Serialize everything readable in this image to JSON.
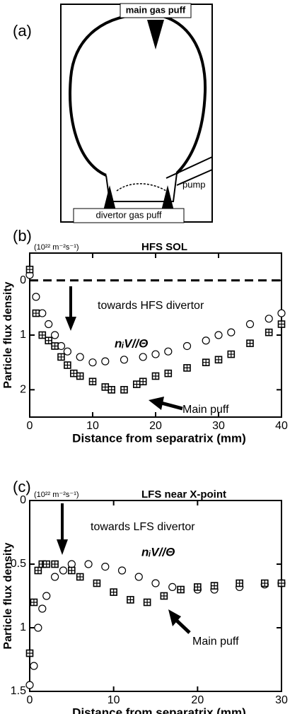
{
  "diagram": {
    "panel_label": "(a)",
    "labels": [
      "main gas puff",
      "pump",
      "divertor gas puff"
    ]
  },
  "chart_data": [
    {
      "type": "scatter",
      "panel_label": "(b)",
      "ylabel": "Particle flux density",
      "xlabel": "Distance from separatrix (mm)",
      "annotations": [
        "(10²² m⁻²s⁻¹)",
        "HFS SOL",
        "towards HFS divertor",
        "nᵢV//Θ",
        "Main puff"
      ],
      "xlim": [
        0,
        40
      ],
      "xticks": [
        0,
        10,
        20,
        30,
        40
      ],
      "ylim": [
        -0.5,
        2.5
      ],
      "yticks": [
        0,
        1,
        2
      ],
      "y_inverted": true,
      "hline": 0,
      "series": [
        {
          "marker": "circle",
          "color": "#000",
          "x": [
            0,
            1,
            2,
            3,
            4,
            5,
            6,
            8,
            10,
            12,
            15,
            18,
            20,
            22,
            25,
            28,
            30,
            32,
            35,
            38,
            40
          ],
          "values": [
            -0.1,
            0.3,
            0.6,
            0.8,
            1.0,
            1.2,
            1.3,
            1.4,
            1.5,
            1.48,
            1.45,
            1.4,
            1.35,
            1.3,
            1.2,
            1.1,
            1.0,
            0.95,
            0.8,
            0.7,
            0.6
          ]
        },
        {
          "marker": "square",
          "color": "#000",
          "x": [
            0,
            1,
            2,
            3,
            4,
            5,
            6,
            7,
            8,
            10,
            12,
            13,
            15,
            17,
            18,
            20,
            22,
            25,
            28,
            30,
            32,
            35,
            38,
            40
          ],
          "values": [
            -0.2,
            0.6,
            1.0,
            1.1,
            1.2,
            1.4,
            1.55,
            1.7,
            1.75,
            1.85,
            1.95,
            2.0,
            2.0,
            1.9,
            1.85,
            1.75,
            1.7,
            1.6,
            1.5,
            1.45,
            1.35,
            1.15,
            0.95,
            0.8
          ]
        }
      ]
    },
    {
      "type": "scatter",
      "panel_label": "(c)",
      "ylabel": "Particle flux density",
      "xlabel": "Distance from separatrix (mm)",
      "annotations": [
        "(10²² m⁻²s⁻¹)",
        "LFS near X-point",
        "towards LFS divertor",
        "nᵢV//Θ",
        "Main puff"
      ],
      "xlim": [
        0,
        30
      ],
      "xticks": [
        0,
        10,
        20,
        30
      ],
      "ylim": [
        0,
        1.5
      ],
      "yticks": [
        0,
        0.5,
        1,
        1.5
      ],
      "y_inverted": true,
      "series": [
        {
          "marker": "circle",
          "color": "#000",
          "x": [
            0,
            0.5,
            1,
            1.5,
            2,
            3,
            4,
            5,
            7,
            9,
            11,
            13,
            15,
            17,
            20,
            22,
            25,
            28,
            30
          ],
          "values": [
            1.45,
            1.3,
            1.0,
            0.85,
            0.75,
            0.6,
            0.55,
            0.5,
            0.5,
            0.52,
            0.55,
            0.6,
            0.65,
            0.68,
            0.7,
            0.7,
            0.68,
            0.66,
            0.65
          ]
        },
        {
          "marker": "square",
          "color": "#000",
          "x": [
            0,
            0.5,
            1,
            1.5,
            2,
            3,
            5,
            6,
            8,
            10,
            12,
            14,
            16,
            18,
            20,
            22,
            25,
            28,
            30
          ],
          "values": [
            1.2,
            0.8,
            0.55,
            0.5,
            0.5,
            0.5,
            0.55,
            0.6,
            0.65,
            0.72,
            0.78,
            0.8,
            0.75,
            0.7,
            0.68,
            0.67,
            0.65,
            0.65,
            0.65
          ]
        }
      ]
    }
  ]
}
